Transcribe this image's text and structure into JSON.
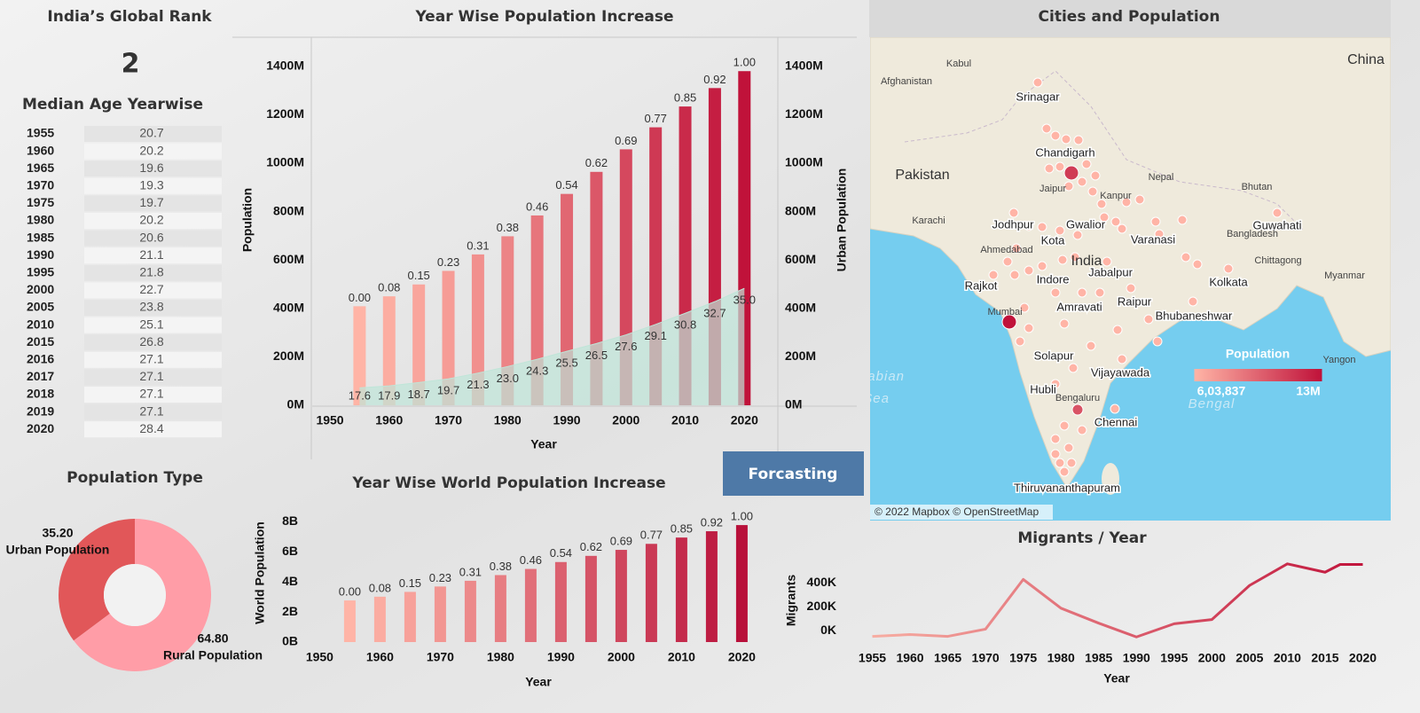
{
  "global_rank": {
    "title": "India’s Global Rank",
    "value": 2
  },
  "median_age": {
    "title": "Median Age Yearwise",
    "rows": [
      [
        1955,
        20.7
      ],
      [
        1960,
        20.2
      ],
      [
        1965,
        19.6
      ],
      [
        1970,
        19.3
      ],
      [
        1975,
        19.7
      ],
      [
        1980,
        20.2
      ],
      [
        1985,
        20.6
      ],
      [
        1990,
        21.1
      ],
      [
        1995,
        21.8
      ],
      [
        2000,
        22.7
      ],
      [
        2005,
        23.8
      ],
      [
        2010,
        25.1
      ],
      [
        2015,
        26.8
      ],
      [
        2016,
        27.1
      ],
      [
        2017,
        27.1
      ],
      [
        2018,
        27.1
      ],
      [
        2019,
        27.1
      ],
      [
        2020,
        28.4
      ]
    ]
  },
  "chart_data": [
    {
      "type": "bar",
      "title": "Year Wise Population Increase",
      "x_label": "Year",
      "y_label": "Population",
      "y2_label": "Urban Population",
      "x": [
        1955,
        1960,
        1965,
        1970,
        1975,
        1980,
        1985,
        1990,
        1995,
        2000,
        2005,
        2010,
        2015,
        2020
      ],
      "xlim": [
        1947,
        2024
      ],
      "xticks": [
        1950,
        1960,
        1970,
        1980,
        1990,
        2000,
        2010,
        2020
      ],
      "ylim": [
        0,
        1520
      ],
      "yticks": [
        {
          "value": 0,
          "label": "0M"
        },
        {
          "value": 200,
          "label": "200M"
        },
        {
          "value": 400,
          "label": "400M"
        },
        {
          "value": 600,
          "label": "600M"
        },
        {
          "value": 800,
          "label": "800M"
        },
        {
          "value": 1000,
          "label": "1000M"
        },
        {
          "value": 1200,
          "label": "1200M"
        },
        {
          "value": 1400,
          "label": "1400M"
        }
      ],
      "y2lim": [
        0,
        1520
      ],
      "y2ticks": [
        {
          "value": 0,
          "label": "0M"
        },
        {
          "value": 200,
          "label": "200M"
        },
        {
          "value": 400,
          "label": "400M"
        },
        {
          "value": 600,
          "label": "600M"
        },
        {
          "value": 800,
          "label": "800M"
        },
        {
          "value": 1000,
          "label": "1000M"
        },
        {
          "value": 1200,
          "label": "1200M"
        },
        {
          "value": 1400,
          "label": "1400M"
        }
      ],
      "color_range": [
        "#ffb4a6",
        "#c0123a"
      ],
      "series": [
        {
          "type": "bar",
          "values": [
            409,
            450,
            499,
            555,
            623,
            698,
            784,
            873,
            964,
            1057,
            1148,
            1234,
            1310,
            1380
          ],
          "labels": [
            "0.00",
            "0.08",
            "0.15",
            "0.23",
            "0.31",
            "0.38",
            "0.46",
            "0.54",
            "0.62",
            "0.69",
            "0.77",
            "0.85",
            "0.92",
            "1.00"
          ]
        },
        {
          "type": "area",
          "axis": "y2",
          "color": "#bfe5d8",
          "values": [
            72,
            80,
            94,
            109,
            133,
            160,
            190,
            223,
            255,
            291,
            334,
            380,
            428,
            483
          ],
          "labels": [
            "17.6",
            "17.9",
            "18.7",
            "19.7",
            "21.3",
            "23.0",
            "24.3",
            "25.5",
            "26.5",
            "27.6",
            "29.1",
            "30.8",
            "32.7",
            "35.0"
          ]
        }
      ]
    },
    {
      "type": "bar",
      "title": "Year Wise World Population Increase",
      "x_label": "Year",
      "y_label": "World Population",
      "x": [
        1955,
        1960,
        1965,
        1970,
        1975,
        1980,
        1985,
        1990,
        1995,
        2000,
        2005,
        2010,
        2015,
        2020
      ],
      "xlim": [
        1947,
        2022
      ],
      "xticks": [
        1950,
        1960,
        1970,
        1980,
        1990,
        2000,
        2010,
        2020
      ],
      "ylim": [
        0,
        8.8
      ],
      "yticks": [
        {
          "value": 0,
          "label": "0B"
        },
        {
          "value": 2,
          "label": "2B"
        },
        {
          "value": 4,
          "label": "4B"
        },
        {
          "value": 6,
          "label": "6B"
        },
        {
          "value": 8,
          "label": "8B"
        }
      ],
      "color_range": [
        "#ffb4a6",
        "#b8103a"
      ],
      "series": [
        {
          "type": "bar",
          "values": [
            2.77,
            3.02,
            3.34,
            3.7,
            4.08,
            4.46,
            4.87,
            5.33,
            5.74,
            6.14,
            6.54,
            6.96,
            7.38,
            7.79
          ],
          "labels": [
            "0.00",
            "0.08",
            "0.15",
            "0.23",
            "0.31",
            "0.38",
            "0.46",
            "0.54",
            "0.62",
            "0.69",
            "0.77",
            "0.85",
            "0.92",
            "1.00"
          ]
        }
      ]
    },
    {
      "type": "pie",
      "title": "Population Type",
      "categories": [
        "Urban Population",
        "Rural Population"
      ],
      "values": [
        35.2,
        64.8
      ],
      "value_labels": [
        "35.20",
        "64.80"
      ],
      "colors": [
        "#e15759",
        "#ff9da7"
      ]
    },
    {
      "type": "line",
      "title": "Migrants / Year",
      "x_label": "Year",
      "y_label": "Migrants",
      "x": [
        1955,
        1960,
        1965,
        1970,
        1975,
        1980,
        1985,
        1990,
        1995,
        2000,
        2005,
        2010,
        2015,
        2017,
        2020
      ],
      "xlim": [
        1954,
        2021
      ],
      "xticks": [
        1955,
        1960,
        1965,
        1970,
        1975,
        1980,
        1985,
        1990,
        1995,
        2000,
        2005,
        2010,
        2015,
        2020
      ],
      "ylim": [
        -100,
        640
      ],
      "yticks": [
        {
          "value": 0,
          "label": "0K"
        },
        {
          "value": 200,
          "label": "200K"
        },
        {
          "value": 400,
          "label": "400K"
        }
      ],
      "color_range": [
        "#f8b0a4",
        "#c0123a"
      ],
      "series": [
        {
          "values": [
            -45,
            -30,
            -45,
            15,
            430,
            190,
            65,
            -50,
            60,
            95,
            380,
            560,
            490,
            555,
            555
          ]
        }
      ]
    }
  ],
  "map": {
    "title": "Cities and Population",
    "labels": [
      "Kabul",
      "Afghanistan",
      "Srinagar",
      "Chandigarh",
      "Pakistan",
      "Nepal",
      "Bhutan",
      "Jaipur",
      "Kanpur",
      "Karachi",
      "Jodhpur",
      "Gwalior",
      "Guwahati",
      "Bangladesh",
      "Kota",
      "Varanasi",
      "Ahmedabad",
      "India",
      "Chittagong",
      "Myanmar",
      "Rajkot",
      "Jabalpur",
      "Indore",
      "Kolkata",
      "Raipur",
      "Mumbai",
      "Amravati",
      "Bhubaneshwar",
      "Solapur",
      "Vijayawada",
      "Yangon",
      "Hubli",
      "Bengaluru",
      "Chennai",
      "Thiruvananthapuram",
      "China",
      "Arabian",
      "Sea",
      "Bengal"
    ],
    "legend": {
      "title": "Population",
      "min": {
        "value": 603837,
        "label": "6,03,837"
      },
      "max": {
        "value": 13000000,
        "label": "13M"
      },
      "colors": [
        "#ffb4a6",
        "#c0123a"
      ]
    },
    "attribution": "© 2022 Mapbox © OpenStreetMap"
  },
  "button": "Forcasting"
}
